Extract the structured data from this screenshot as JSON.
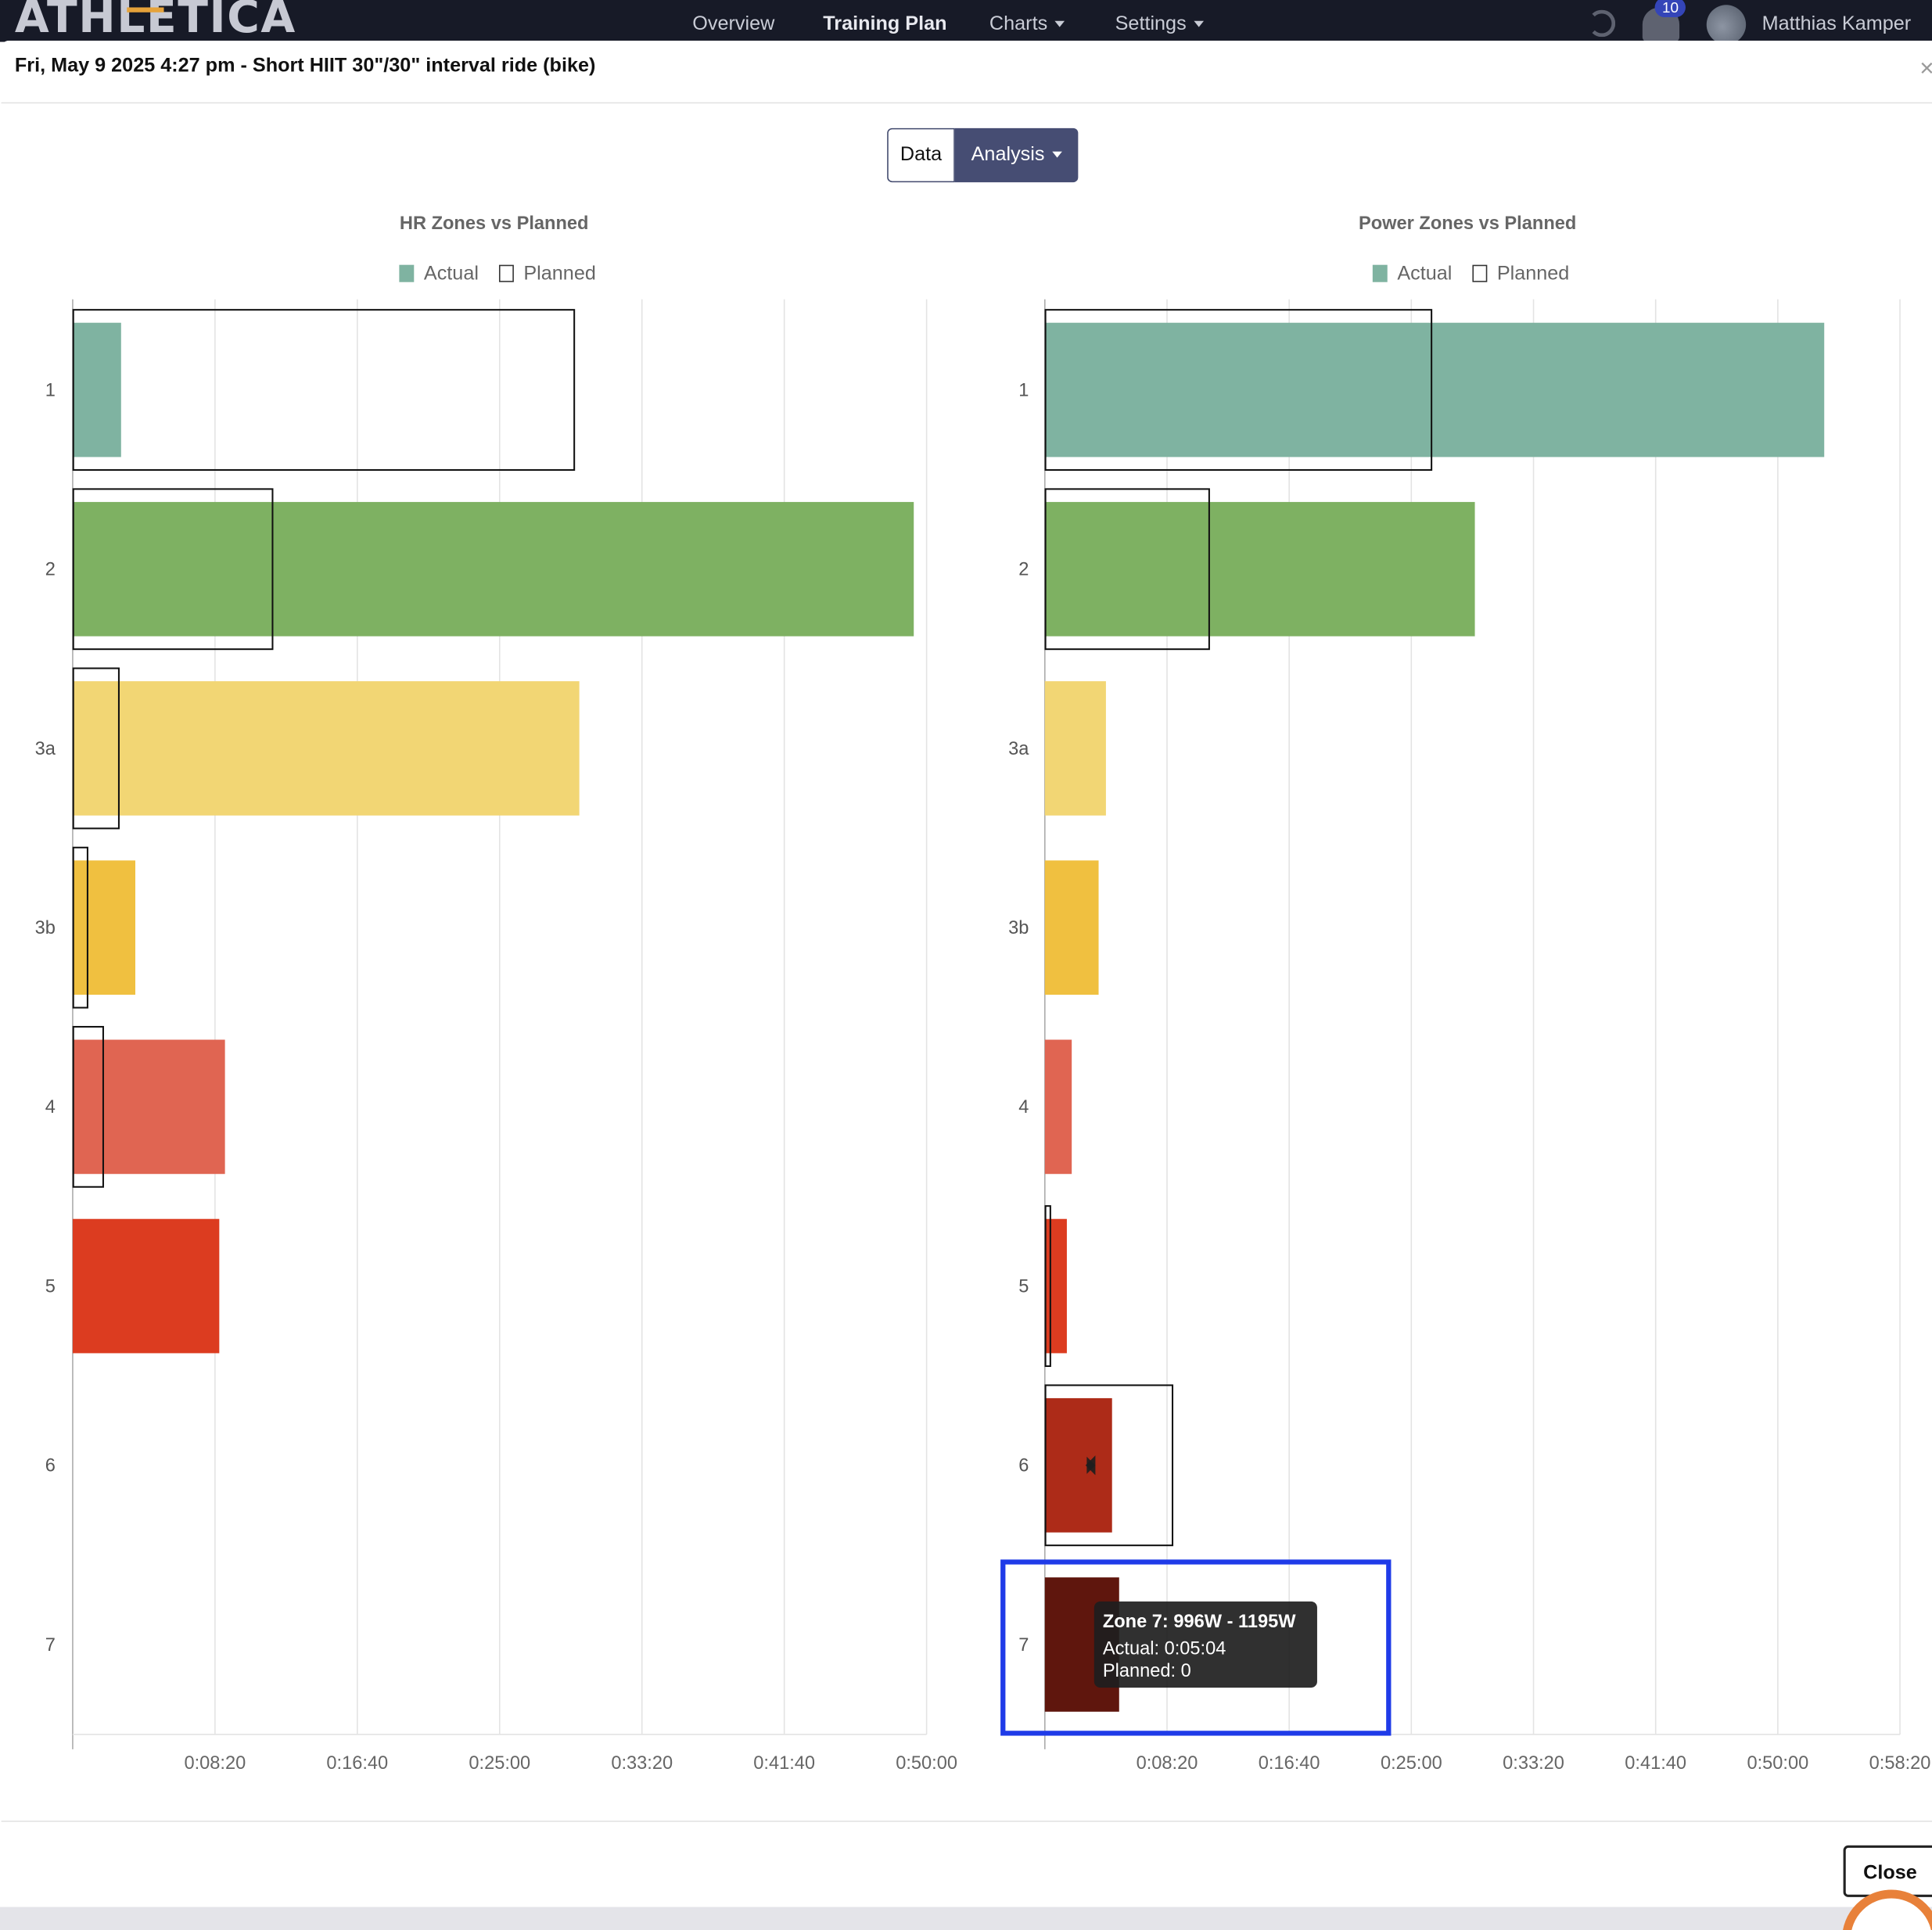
{
  "app": {
    "logo": "ATHLETICA",
    "user": "Matthias Kamper",
    "notification_count": "10"
  },
  "nav": {
    "items": [
      {
        "label": "Overview",
        "active": false,
        "dropdown": false
      },
      {
        "label": "Training Plan",
        "active": true,
        "dropdown": false
      },
      {
        "label": "Charts",
        "active": false,
        "dropdown": true
      },
      {
        "label": "Settings",
        "active": false,
        "dropdown": true
      }
    ]
  },
  "modal": {
    "title": "Fri, May 9 2025 4:27 pm - Short HIIT 30\"/30\" interval ride (bike)",
    "close_x": "×",
    "close_label": "Close",
    "view_toggle": {
      "data_label": "Data",
      "analysis_label": "Analysis",
      "selected": "Analysis"
    }
  },
  "legend": {
    "actual": "Actual",
    "planned": "Planned"
  },
  "icons": {
    "sync": "sync-icon",
    "bell": "bell-icon",
    "avatar": "avatar",
    "close": "close-icon",
    "caret": "chevron-down-icon"
  },
  "colors": {
    "nav_bg": "#171a27",
    "accent_button": "#464d73",
    "badge": "#3445b8",
    "highlight": "#1f3be8"
  },
  "chart_data": [
    {
      "type": "bar",
      "orientation": "horizontal",
      "title": "HR Zones vs Planned",
      "categories": [
        "1",
        "2",
        "3a",
        "3b",
        "4",
        "5",
        "6",
        "7"
      ],
      "x_unit": "seconds",
      "xlim": [
        0,
        3000
      ],
      "x_ticks": [
        "0:08:20",
        "0:16:40",
        "0:25:00",
        "0:33:20",
        "0:41:40",
        "0:50:00"
      ],
      "grid": true,
      "legend_position": "top-center",
      "series": [
        {
          "name": "Actual",
          "values": [
            170,
            2955,
            1780,
            220,
            535,
            515,
            0,
            0
          ],
          "colors": [
            "#7fb3a1",
            "#7eb162",
            "#f2d674",
            "#f0c040",
            "#e06552",
            "#dc3c20",
            "#ad2b18",
            "#5f160d"
          ]
        },
        {
          "name": "Planned",
          "values": [
            1760,
            700,
            160,
            50,
            105,
            0,
            0,
            0
          ]
        }
      ]
    },
    {
      "type": "bar",
      "orientation": "horizontal",
      "title": "Power Zones vs Planned",
      "categories": [
        "1",
        "2",
        "3a",
        "3b",
        "4",
        "5",
        "6",
        "7"
      ],
      "x_unit": "seconds",
      "xlim": [
        0,
        3500
      ],
      "x_ticks": [
        "0:08:20",
        "0:16:40",
        "0:25:00",
        "0:33:20",
        "0:41:40",
        "0:50:00",
        "0:58:20"
      ],
      "grid": true,
      "legend_position": "top-center",
      "series": [
        {
          "name": "Actual",
          "values": [
            3190,
            1760,
            250,
            220,
            110,
            90,
            275,
            304
          ],
          "colors": [
            "#7fb3a1",
            "#7eb162",
            "#f2d674",
            "#f0c040",
            "#e06552",
            "#dc3c20",
            "#ad2b18",
            "#5f160d"
          ]
        },
        {
          "name": "Planned",
          "values": [
            1580,
            670,
            0,
            0,
            0,
            20,
            520,
            0
          ]
        }
      ],
      "tooltip": {
        "zone_index": 7,
        "title": "Zone 7: 996W - 1195W",
        "actual": "Actual: 0:05:04",
        "planned": "Planned: 0"
      }
    }
  ]
}
